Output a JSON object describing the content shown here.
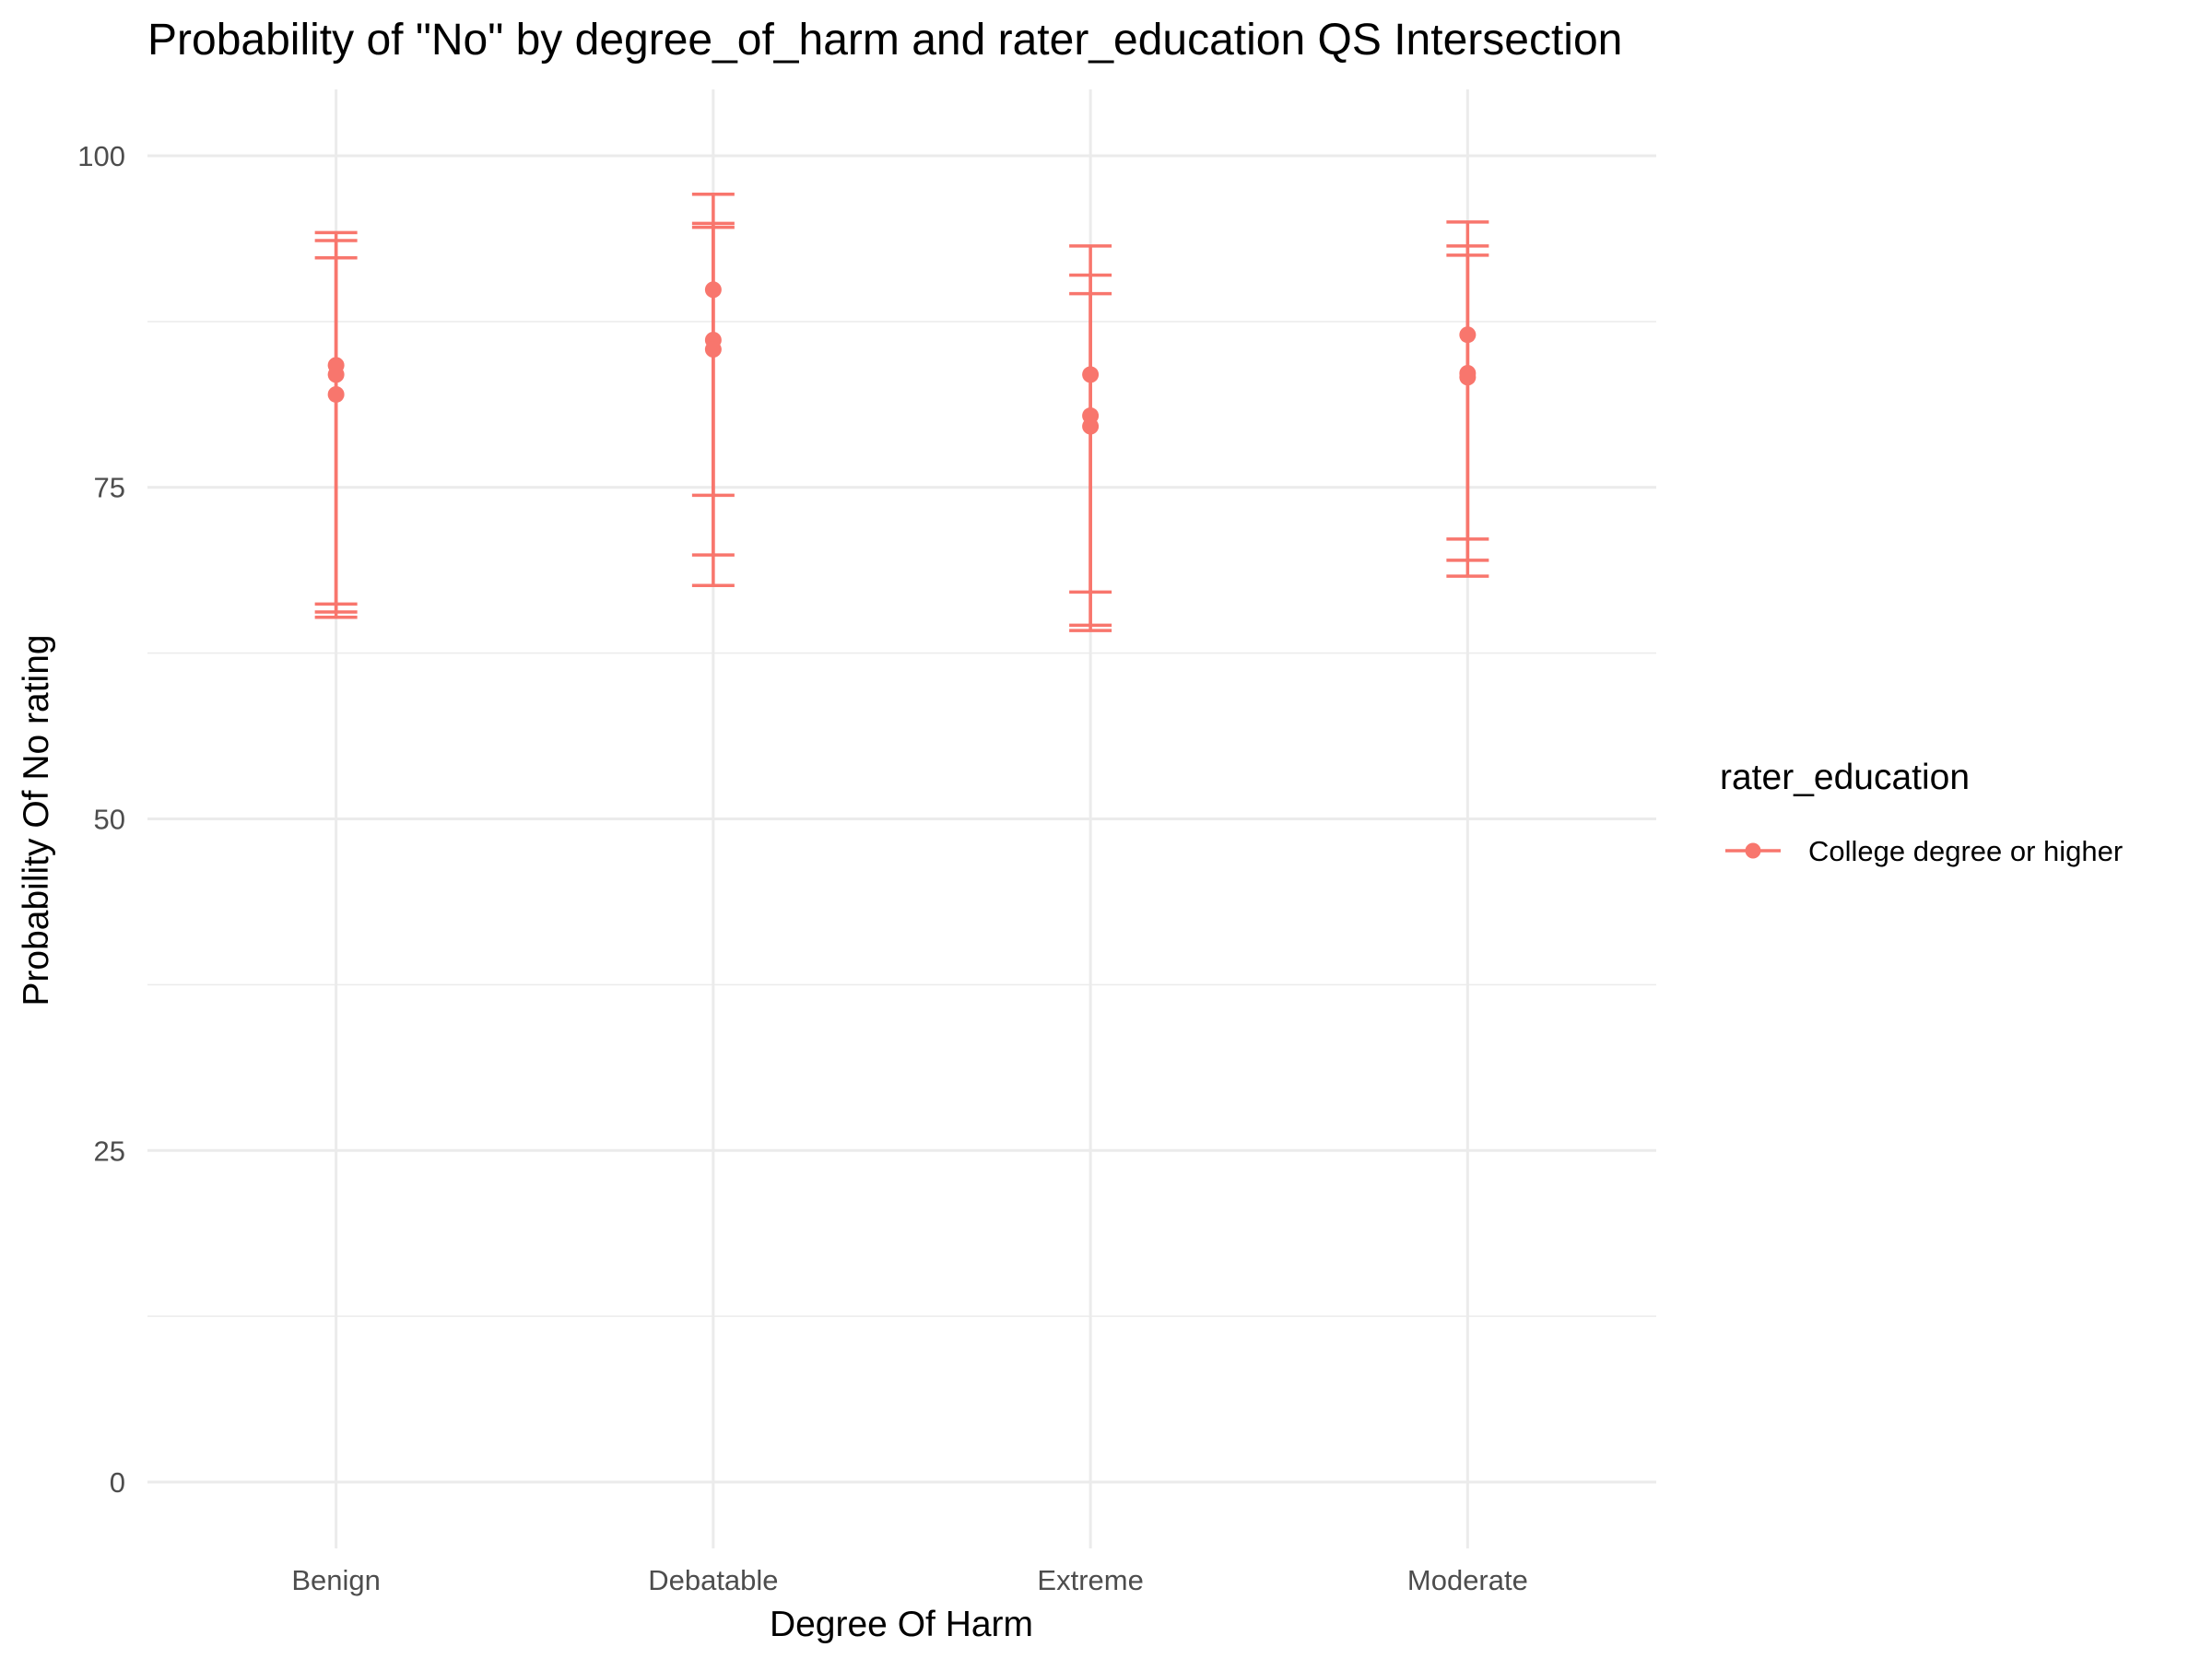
{
  "chart_data": {
    "type": "scatter",
    "title": "Probability of \"No\" by degree_of_harm and  rater_education  QS Intersection",
    "xlabel": "Degree Of Harm",
    "ylabel": "Probability Of No rating",
    "categories": [
      "Benign",
      "Debatable",
      "Extreme",
      "Moderate"
    ],
    "ylim": [
      -5,
      105
    ],
    "y_ticks": [
      "0",
      "25",
      "50",
      "75",
      "100"
    ],
    "grid": true,
    "color": "#F8766D",
    "legend": {
      "title": "rater_education",
      "placement": "right",
      "entries": [
        "College degree or higher"
      ]
    },
    "series": [
      {
        "name": "College degree or higher",
        "points": [
          {
            "category": "Benign",
            "y": 84.2,
            "lower": 66.2,
            "upper": 94.2
          },
          {
            "category": "Benign",
            "y": 83.5,
            "lower": 65.6,
            "upper": 93.6
          },
          {
            "category": "Benign",
            "y": 82.0,
            "lower": 65.2,
            "upper": 92.3
          },
          {
            "category": "Debatable",
            "y": 89.9,
            "lower": 74.4,
            "upper": 97.1
          },
          {
            "category": "Debatable",
            "y": 86.1,
            "lower": 69.9,
            "upper": 94.9
          },
          {
            "category": "Debatable",
            "y": 85.4,
            "lower": 67.6,
            "upper": 94.6
          },
          {
            "category": "Extreme",
            "y": 83.5,
            "lower": 67.1,
            "upper": 93.2
          },
          {
            "category": "Extreme",
            "y": 80.4,
            "lower": 64.6,
            "upper": 91.0
          },
          {
            "category": "Extreme",
            "y": 79.6,
            "lower": 64.2,
            "upper": 89.6
          },
          {
            "category": "Moderate",
            "y": 86.5,
            "lower": 71.1,
            "upper": 95.0
          },
          {
            "category": "Moderate",
            "y": 83.6,
            "lower": 69.5,
            "upper": 93.2
          },
          {
            "category": "Moderate",
            "y": 83.3,
            "lower": 68.3,
            "upper": 92.5
          }
        ]
      }
    ]
  }
}
